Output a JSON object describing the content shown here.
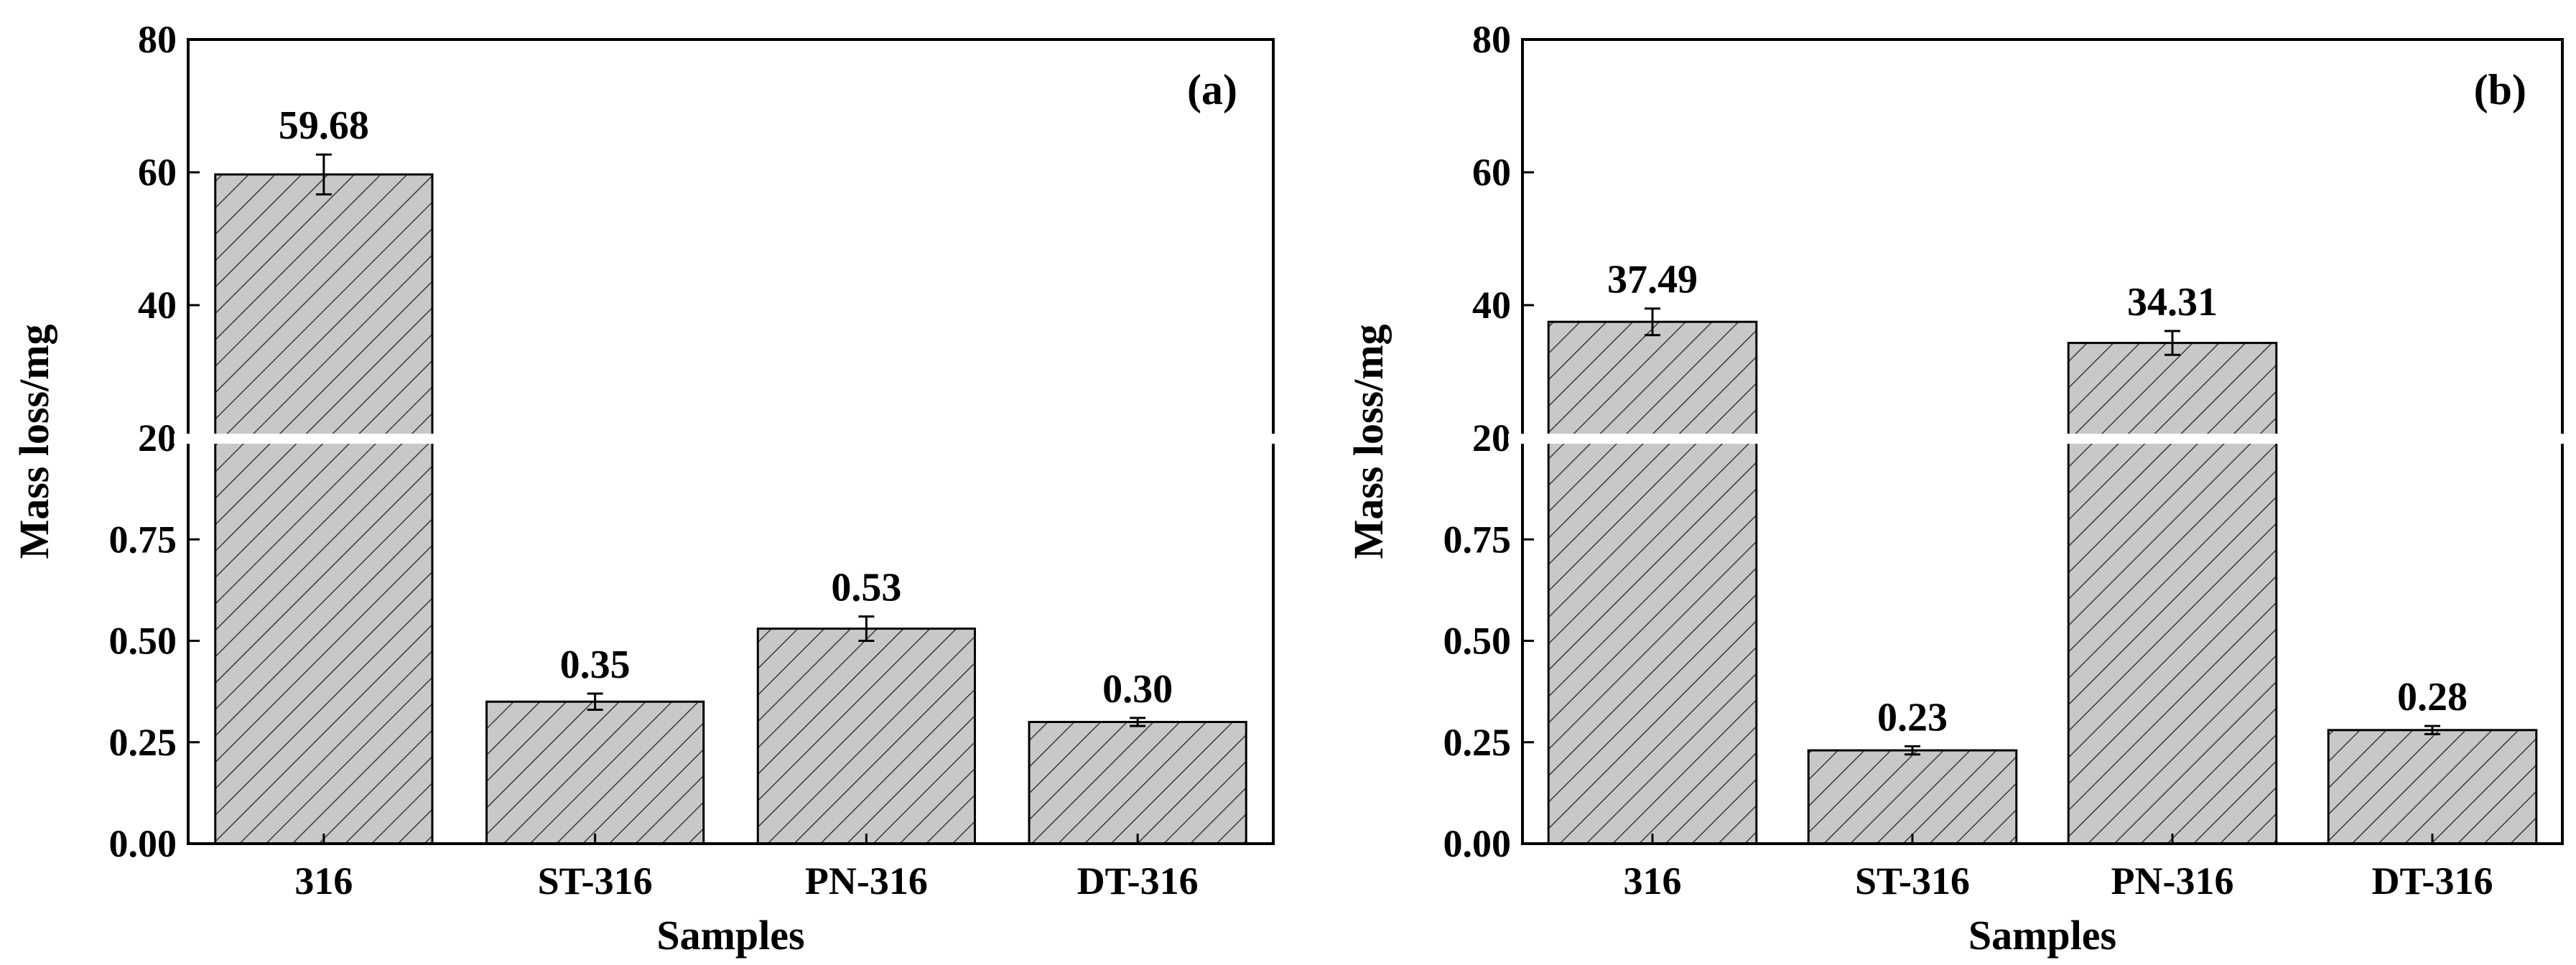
{
  "chart_data": [
    {
      "type": "bar",
      "panel_label": "(a)",
      "xlabel": "Samples",
      "ylabel": "Mass loss/mg",
      "categories": [
        "316",
        "ST-316",
        "PN-316",
        "DT-316"
      ],
      "values": [
        59.68,
        0.35,
        0.53,
        0.3
      ],
      "value_labels": [
        "59.68",
        "0.35",
        "0.53",
        "0.30"
      ],
      "errors": [
        3.0,
        0.02,
        0.03,
        0.01
      ],
      "axis_break": true,
      "lower_ylim": [
        0,
        1.0
      ],
      "upper_ylim": [
        20,
        80
      ],
      "lower_ticks": [
        "0.00",
        "0.25",
        "0.50",
        "0.75"
      ],
      "upper_ticks": [
        "20",
        "40",
        "60",
        "80"
      ],
      "fill": "hatched grey",
      "fill_color": "#c8c8c8",
      "grid": false
    },
    {
      "type": "bar",
      "panel_label": "(b)",
      "xlabel": "Samples",
      "ylabel": "Mass loss/mg",
      "categories": [
        "316",
        "ST-316",
        "PN-316",
        "DT-316"
      ],
      "values": [
        37.49,
        0.23,
        34.31,
        0.28
      ],
      "value_labels": [
        "37.49",
        "0.23",
        "34.31",
        "0.28"
      ],
      "errors": [
        2.0,
        0.01,
        1.8,
        0.01
      ],
      "axis_break": true,
      "lower_ylim": [
        0,
        1.0
      ],
      "upper_ylim": [
        20,
        80
      ],
      "lower_ticks": [
        "0.00",
        "0.25",
        "0.50",
        "0.75"
      ],
      "upper_ticks": [
        "20",
        "40",
        "60",
        "80"
      ],
      "fill": "hatched grey",
      "fill_color": "#c8c8c8",
      "grid": false
    }
  ]
}
